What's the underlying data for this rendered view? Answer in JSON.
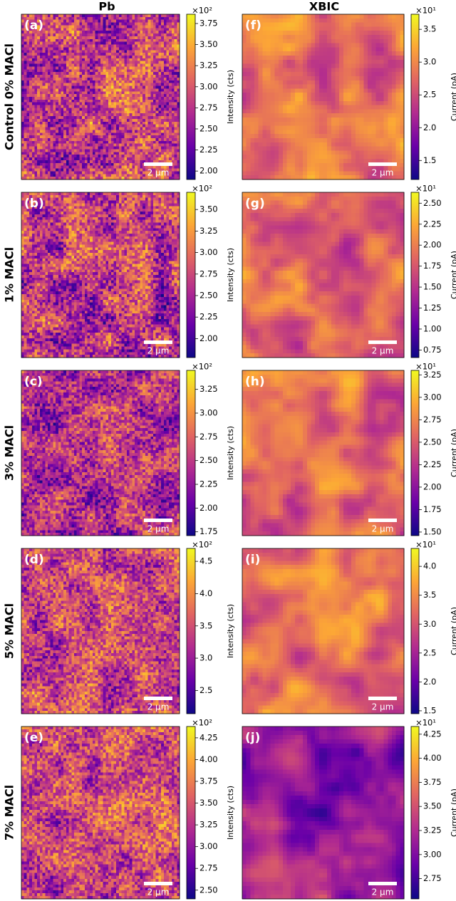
{
  "columns": [
    "Pb",
    "XBIC"
  ],
  "rows": [
    "Control 0% MACl",
    "1% MACl",
    "3% MACl",
    "5% MACl",
    "7% MACl"
  ],
  "chart_data": [
    {
      "type": "heatmap",
      "panel_label": "(a)",
      "colorbar_label": "Intensity (cts)",
      "scale_label": "×10²",
      "scalebar_label": "2 µm",
      "colormap": "plasma",
      "clim": [
        1.9,
        3.86
      ],
      "cticks": [
        {
          "value": 2,
          "label": "2.00"
        },
        2.25,
        {
          "value": 2.5,
          "label": "2.50"
        },
        2.75,
        {
          "value": 3,
          "label": "3.00"
        },
        3.25,
        {
          "value": 3.5,
          "label": "3.50"
        },
        3.75
      ]
    },
    {
      "type": "heatmap",
      "panel_label": "(f)",
      "colorbar_label": "Current (pA)",
      "scale_label": "×10¹",
      "scalebar_label": "2 µm",
      "colormap": "plasma",
      "clim": [
        1.21,
        3.73
      ],
      "cticks": [
        1.5,
        {
          "value": 2,
          "label": "2.0"
        },
        2.5,
        {
          "value": 3,
          "label": "3.0"
        },
        3.5
      ]
    },
    {
      "type": "heatmap",
      "panel_label": "(b)",
      "colorbar_label": "Intensity (cts)",
      "scale_label": "×10²",
      "scalebar_label": "2 µm",
      "colormap": "plasma",
      "clim": [
        1.78,
        3.7
      ],
      "cticks": [
        {
          "value": 2,
          "label": "2.00"
        },
        2.25,
        {
          "value": 2.5,
          "label": "2.50"
        },
        2.75,
        {
          "value": 3,
          "label": "3.00"
        },
        3.25,
        {
          "value": 3.5,
          "label": "3.50"
        }
      ]
    },
    {
      "type": "heatmap",
      "panel_label": "(g)",
      "colorbar_label": "Current (pA)",
      "scale_label": "×10¹",
      "scalebar_label": "2 µm",
      "colormap": "plasma",
      "clim": [
        0.66,
        2.63
      ],
      "cticks": [
        0.75,
        {
          "value": 1,
          "label": "1.00"
        },
        1.25,
        {
          "value": 1.5,
          "label": "1.50"
        },
        1.75,
        {
          "value": 2,
          "label": "2.00"
        },
        2.25,
        {
          "value": 2.5,
          "label": "2.50"
        }
      ]
    },
    {
      "type": "heatmap",
      "panel_label": "(c)",
      "colorbar_label": "Intensity (cts)",
      "scale_label": "×10²",
      "scalebar_label": "2 µm",
      "colormap": "plasma",
      "clim": [
        1.71,
        3.45
      ],
      "cticks": [
        1.75,
        {
          "value": 2,
          "label": "2.00"
        },
        2.25,
        {
          "value": 2.5,
          "label": "2.50"
        },
        2.75,
        {
          "value": 3,
          "label": "3.00"
        },
        3.25
      ]
    },
    {
      "type": "heatmap",
      "panel_label": "(h)",
      "colorbar_label": "Current (pA)",
      "scale_label": "×10¹",
      "scalebar_label": "2 µm",
      "colormap": "plasma",
      "clim": [
        1.46,
        3.3
      ],
      "cticks": [
        {
          "value": 1.5,
          "label": "1.50"
        },
        1.75,
        {
          "value": 2,
          "label": "2.00"
        },
        2.25,
        {
          "value": 2.5,
          "label": "2.50"
        },
        2.75,
        {
          "value": 3,
          "label": "3.00"
        },
        3.25
      ]
    },
    {
      "type": "heatmap",
      "panel_label": "(d)",
      "colorbar_label": "Intensity (cts)",
      "scale_label": "×10²",
      "scalebar_label": "2 µm",
      "colormap": "plasma",
      "clim": [
        2.14,
        4.7
      ],
      "cticks": [
        2.5,
        {
          "value": 3,
          "label": "3.0"
        },
        3.5,
        {
          "value": 4,
          "label": "4.0"
        },
        4.5
      ]
    },
    {
      "type": "heatmap",
      "panel_label": "(i)",
      "colorbar_label": "Current (pA)",
      "scale_label": "×10¹",
      "scalebar_label": "2 µm",
      "colormap": "plasma",
      "clim": [
        1.45,
        4.31
      ],
      "cticks": [
        1.5,
        {
          "value": 2,
          "label": "2.0"
        },
        2.5,
        {
          "value": 3,
          "label": "3.0"
        },
        3.5,
        {
          "value": 4,
          "label": "4.0"
        }
      ]
    },
    {
      "type": "heatmap",
      "panel_label": "(e)",
      "colorbar_label": "Intensity (cts)",
      "scale_label": "×10²",
      "scalebar_label": "2 µm",
      "colormap": "plasma",
      "clim": [
        2.4,
        4.38
      ],
      "cticks": [
        {
          "value": 2.5,
          "label": "2.50"
        },
        2.75,
        {
          "value": 3,
          "label": "3.00"
        },
        3.25,
        {
          "value": 3.5,
          "label": "3.50"
        },
        3.75,
        {
          "value": 4,
          "label": "4.00"
        },
        4.25
      ]
    },
    {
      "type": "heatmap",
      "panel_label": "(j)",
      "colorbar_label": "Current (pA)",
      "scale_label": "×10¹",
      "scalebar_label": "2 µm",
      "colormap": "plasma",
      "clim": [
        2.54,
        4.33
      ],
      "cticks": [
        2.75,
        {
          "value": 3,
          "label": "3.00"
        },
        3.25,
        {
          "value": 3.5,
          "label": "3.50"
        },
        3.75,
        {
          "value": 4,
          "label": "4.00"
        },
        4.25
      ]
    }
  ]
}
